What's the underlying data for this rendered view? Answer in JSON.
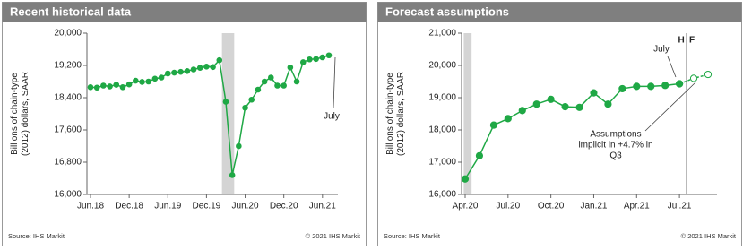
{
  "chart_data": [
    {
      "type": "line",
      "title": "Recent historical data",
      "y_label": [
        "Billions of chain-type",
        "(2012) dollars, SAAR"
      ],
      "categories": [
        "Jun.18",
        null,
        null,
        null,
        null,
        null,
        "Dec.18",
        null,
        null,
        null,
        null,
        null,
        "Jun.19",
        null,
        null,
        null,
        null,
        null,
        "Dec.19",
        null,
        null,
        null,
        null,
        null,
        "Jun.20",
        null,
        null,
        null,
        null,
        null,
        "Dec.20",
        null,
        null,
        null,
        null,
        null,
        "Jun.21",
        null
      ],
      "series": [
        {
          "color": "#1fa845",
          "values": [
            18660,
            18650,
            18700,
            18680,
            18720,
            18660,
            18730,
            18820,
            18790,
            18800,
            18870,
            18900,
            19000,
            19020,
            19040,
            19060,
            19100,
            19140,
            19170,
            19160,
            19330,
            18300,
            16480,
            17200,
            18150,
            18350,
            18600,
            18800,
            18900,
            18700,
            18700,
            19150,
            18800,
            19280,
            19350,
            19360,
            19400,
            19450
          ]
        }
      ],
      "ylim": [
        16000,
        20000
      ],
      "yticks": [
        {
          "value": 16000,
          "label": "16,000"
        },
        {
          "value": 16800,
          "label": "16,800"
        },
        {
          "value": 17600,
          "label": "17,600"
        },
        {
          "value": 18400,
          "label": "18,400"
        },
        {
          "value": 19200,
          "label": "19,200"
        },
        {
          "value": 20000,
          "label": "20,000"
        }
      ],
      "annotations": [
        [
          "July"
        ]
      ],
      "source": "Source: IHS Markit",
      "copyright": "© 2021 IHS Markit"
    },
    {
      "type": "line",
      "title": "Forecast assumptions",
      "y_label": [
        "Billions of chain-type",
        "(2012) dollars, SAAR"
      ],
      "categories": [
        "Apr.20",
        null,
        null,
        "Jul.20",
        null,
        null,
        "Oct.20",
        null,
        null,
        "Jan.21",
        null,
        null,
        "Apr.21",
        null,
        null,
        "Jul.21",
        null,
        null
      ],
      "series": [
        {
          "color": "#1fa845",
          "style": "dashed",
          "marker": "open",
          "values": [
            null,
            null,
            null,
            null,
            null,
            null,
            null,
            null,
            null,
            null,
            null,
            null,
            null,
            null,
            null,
            19430,
            19600,
            19720
          ]
        },
        {
          "color": "#1fa845",
          "values": [
            16480,
            17200,
            18150,
            18350,
            18600,
            18800,
            18950,
            18720,
            18700,
            19150,
            18800,
            19280,
            19350,
            19350,
            19380,
            19430,
            null,
            null
          ]
        }
      ],
      "ylim": [
        16000,
        21000
      ],
      "yticks": [
        {
          "value": 16000,
          "label": "16,000"
        },
        {
          "value": 17000,
          "label": "17,000"
        },
        {
          "value": 18000,
          "label": "18,000"
        },
        {
          "value": 19000,
          "label": "19,000"
        },
        {
          "value": 20000,
          "label": "20,000"
        },
        {
          "value": 21000,
          "label": "21,000"
        }
      ],
      "divider": [
        "H",
        "F"
      ],
      "annotations": [
        [
          "July"
        ],
        [
          "Assumptions",
          "implicit  in +4.7% in",
          "Q3"
        ]
      ],
      "source": "Source: IHS Markit",
      "copyright": "© 2021 IHS Markit"
    }
  ]
}
